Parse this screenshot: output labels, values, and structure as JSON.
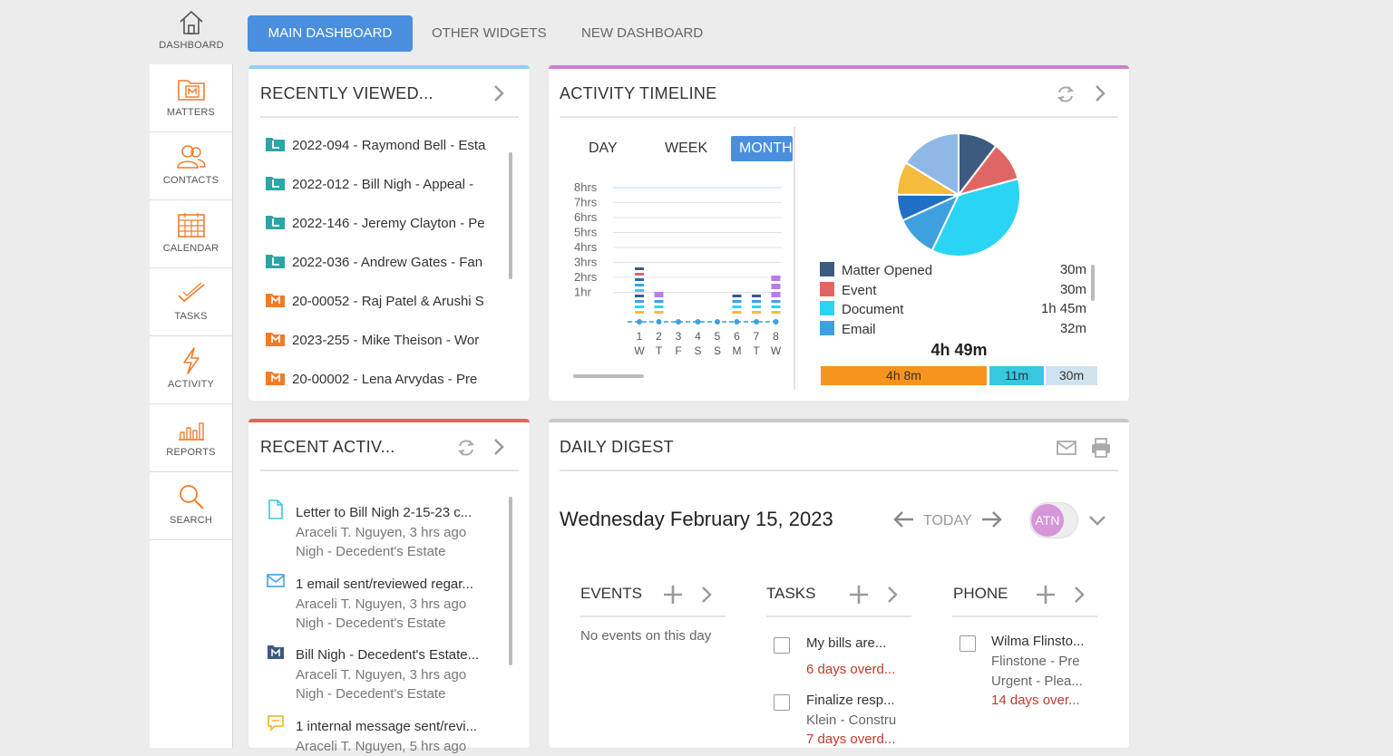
{
  "nav": {
    "home_label": "DASHBOARD",
    "items": [
      {
        "label": "MATTERS"
      },
      {
        "label": "CONTACTS"
      },
      {
        "label": "CALENDAR"
      },
      {
        "label": "TASKS"
      },
      {
        "label": "ACTIVITY"
      },
      {
        "label": "REPORTS"
      },
      {
        "label": "SEARCH"
      }
    ]
  },
  "tabs": [
    {
      "label": "MAIN DASHBOARD",
      "active": true
    },
    {
      "label": "OTHER WIDGETS"
    },
    {
      "label": "NEW DASHBOARD"
    }
  ],
  "recently_viewed": {
    "title": "RECENTLY VIEWED...",
    "items": [
      {
        "text": "2022-094 - Raymond Bell - Esta",
        "icon": "litigation-matter-icon"
      },
      {
        "text": "2022-012 - Bill Nigh - Appeal -",
        "icon": "litigation-matter-icon"
      },
      {
        "text": "2022-146 - Jeremy Clayton - Pe",
        "icon": "litigation-matter-icon"
      },
      {
        "text": "2022-036 - Andrew Gates - Fan",
        "icon": "litigation-matter-icon"
      },
      {
        "text": "20-00052 - Raj Patel & Arushi S",
        "icon": "matter-icon"
      },
      {
        "text": "2023-255 - Mike Theison - Wor",
        "icon": "matter-icon"
      },
      {
        "text": "20-00002 - Lena Arvydas - Pre",
        "icon": "matter-icon"
      }
    ]
  },
  "recent_activity": {
    "title": "RECENT ACTIV...",
    "items": [
      {
        "icon": "document-icon",
        "line1": "Letter to Bill Nigh 2-15-23 c...",
        "line2": "Araceli T. Nguyen, 3 hrs ago",
        "line3": "Nigh - Decedent's Estate"
      },
      {
        "icon": "email-icon",
        "line1": "1 email sent/reviewed regar...",
        "line2": "Araceli T. Nguyen, 3 hrs ago",
        "line3": "Nigh - Decedent's Estate"
      },
      {
        "icon": "matter-icon",
        "line1": "Bill Nigh - Decedent's Estate...",
        "line2": "Araceli T. Nguyen, 3 hrs ago",
        "line3": "Nigh - Decedent's Estate"
      },
      {
        "icon": "message-icon",
        "line1": "1 internal message sent/revi...",
        "line2": "Araceli T. Nguyen, 5 hrs ago",
        "line3": ""
      }
    ]
  },
  "activity_timeline": {
    "title": "ACTIVITY TIMELINE",
    "range_tabs": [
      {
        "label": "DAY"
      },
      {
        "label": "WEEK"
      },
      {
        "label": "MONTH",
        "active": true
      }
    ],
    "y_labels": [
      "8hrs",
      "7hrs",
      "6hrs",
      "5hrs",
      "4hrs",
      "3hrs",
      "2hrs",
      "1hr"
    ],
    "days": [
      {
        "num": "1",
        "dow": "W"
      },
      {
        "num": "2",
        "dow": "T"
      },
      {
        "num": "3",
        "dow": "F"
      },
      {
        "num": "4",
        "dow": "S"
      },
      {
        "num": "5",
        "dow": "S"
      },
      {
        "num": "6",
        "dow": "M"
      },
      {
        "num": "7",
        "dow": "T"
      },
      {
        "num": "8",
        "dow": "W"
      }
    ],
    "legend": [
      {
        "label": "Matter Opened",
        "value": "30m",
        "color": "#3d5a80"
      },
      {
        "label": "Event",
        "value": "30m",
        "color": "#e06666"
      },
      {
        "label": "Document",
        "value": "1h 45m",
        "color": "#2ad4f5"
      },
      {
        "label": "Email",
        "value": "32m",
        "color": "#3fa0e0"
      }
    ],
    "total": "4h 49m",
    "summary": [
      {
        "label": "4h 8m",
        "color": "#f7941d"
      },
      {
        "label": "11m",
        "color": "#35c8e0"
      },
      {
        "label": "30m",
        "color": "#cfe2ef"
      }
    ]
  },
  "chart_data": {
    "type": "pie",
    "title": "",
    "series": [
      {
        "name": "Matter Opened",
        "value": 30,
        "color": "#3d5a80"
      },
      {
        "name": "Event",
        "value": 30,
        "color": "#e06666"
      },
      {
        "name": "Document",
        "value": 105,
        "color": "#2ad4f5"
      },
      {
        "name": "Email",
        "value": 32,
        "color": "#3fa0e0"
      },
      {
        "value": 20,
        "color": "#1f6fc5"
      },
      {
        "value": 25,
        "color": "#f5bb3a"
      },
      {
        "value": 47,
        "color": "#8fb8e6"
      }
    ]
  },
  "daily_digest": {
    "title": "DAILY DIGEST",
    "date": "Wednesday February 15, 2023",
    "today_label": "TODAY",
    "user_initials": "ATN",
    "events": {
      "title": "EVENTS",
      "empty": "No events on this day"
    },
    "tasks": {
      "title": "TASKS",
      "items": [
        {
          "line1": "My bills are...",
          "line2": "6 days overd..."
        },
        {
          "line1": "Finalize resp...",
          "line2": "Klein - Constru",
          "line3": "7 days overd..."
        }
      ]
    },
    "phone": {
      "title": "PHONE",
      "items": [
        {
          "line1": "Wilma Flinsto...",
          "line2": "Flinstone - Pre",
          "line3": "Urgent - Plea...",
          "line4": "14 days over..."
        }
      ]
    }
  }
}
